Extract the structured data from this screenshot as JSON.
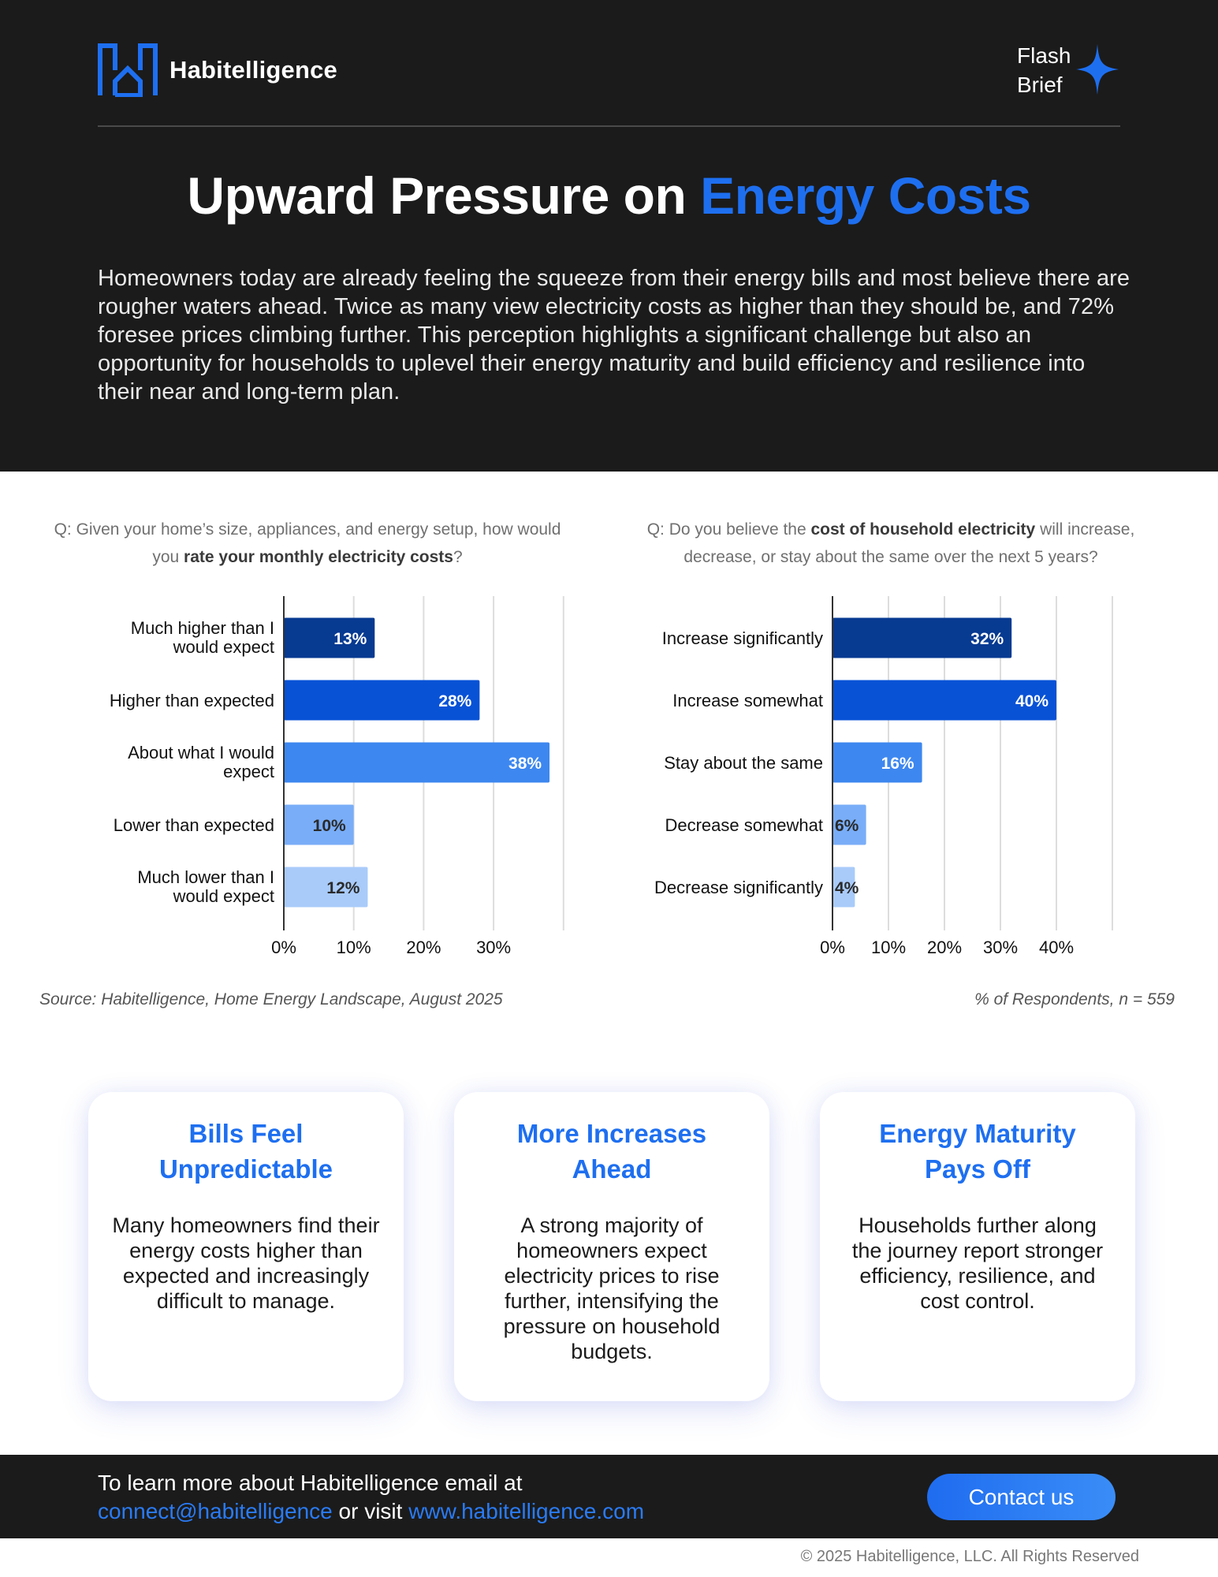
{
  "brand": {
    "name": "Habitelligence",
    "badge_line1": "Flash",
    "badge_line2": "Brief"
  },
  "hero": {
    "title_main": "Upward Pressure on ",
    "title_accent": "Energy Costs",
    "body": "Homeowners today are already feeling the squeeze from their energy bills and most believe there are rougher waters ahead. Twice as many view electricity costs as higher than they should be, and 72% foresee prices climbing further. This perception highlights a significant challenge but also an opportunity for households to uplevel their energy maturity and build efficiency and resilience into their near and long-term plan."
  },
  "questions": {
    "left": {
      "prefix": "Q: Given your home’s size, appliances, and energy setup, how would you ",
      "bold": "rate your monthly electricity costs",
      "suffix": "?"
    },
    "right": {
      "prefix": "Q: Do you believe the ",
      "bold": "cost of household electricity",
      "suffix": " will increase, decrease, or stay about the same over the next 5 years?"
    }
  },
  "chart_data": [
    {
      "type": "bar",
      "orientation": "horizontal",
      "categories": [
        [
          "Much higher than I",
          "would expect"
        ],
        [
          "Higher than expected"
        ],
        [
          "About what I would",
          "expect"
        ],
        [
          "Lower than expected"
        ],
        [
          "Much lower than I",
          "would expect"
        ]
      ],
      "values": [
        13,
        28,
        38,
        10,
        12
      ],
      "value_labels": [
        "13%",
        "28%",
        "38%",
        "10%",
        "12%"
      ],
      "bar_colors": [
        "#073a91",
        "#0852d6",
        "#3d87f0",
        "#79adf7",
        "#a9cbfa"
      ],
      "label_colors": [
        "#ffffff",
        "#ffffff",
        "#ffffff",
        "#2a2a2a",
        "#2a2a2a"
      ],
      "ticks": [
        0,
        10,
        20,
        30
      ],
      "tick_labels": [
        "0%",
        "10%",
        "20%",
        "30%"
      ],
      "xlim": [
        0,
        40
      ],
      "grid": true
    },
    {
      "type": "bar",
      "orientation": "horizontal",
      "categories": [
        [
          "Increase significantly"
        ],
        [
          "Increase somewhat"
        ],
        [
          "Stay about the same"
        ],
        [
          "Decrease somewhat"
        ],
        [
          "Decrease significantly"
        ]
      ],
      "values": [
        32,
        40,
        16,
        6,
        4
      ],
      "value_labels": [
        "32%",
        "40%",
        "16%",
        "6%",
        "4%"
      ],
      "bar_colors": [
        "#073a91",
        "#0852d6",
        "#3d87f0",
        "#79adf7",
        "#a9cbfa"
      ],
      "label_colors": [
        "#ffffff",
        "#ffffff",
        "#ffffff",
        "#2a2a2a",
        "#2a2a2a"
      ],
      "ticks": [
        0,
        10,
        20,
        30,
        40
      ],
      "tick_labels": [
        "0%",
        "10%",
        "20%",
        "30%",
        "40%"
      ],
      "xlim": [
        0,
        50
      ],
      "grid": true
    }
  ],
  "source": "Source: Habitelligence, Home Energy Landscape, August 2025",
  "respondents": "% of Respondents, n = 559",
  "cards": [
    {
      "title_line1": "Bills Feel",
      "title_line2": "Unpredictable",
      "body": "Many homeowners find their energy costs higher than expected and increasingly difficult to manage."
    },
    {
      "title_line1": "More Increases",
      "title_line2": "Ahead",
      "body": "A strong majority of homeowners expect electricity prices to rise further, intensifying the pressure on household budgets."
    },
    {
      "title_line1": "Energy Maturity",
      "title_line2": "Pays Off",
      "body": "Households further along the journey report stronger efficiency, resilience, and cost control."
    }
  ],
  "footer": {
    "line1": "To learn more about Habitelligence email at",
    "email": "connect@habitelligence",
    "mid": " or visit ",
    "website": "www.habitelligence.com",
    "button": "Contact us"
  },
  "copyright": "© 2025 Habitelligence, LLC. All Rights Reserved",
  "colors": {
    "accent": "#1e6ff0",
    "dark": "#1b1b1b"
  },
  "icons": {
    "logo": "house-logo-icon",
    "spark": "sparkle-icon"
  }
}
